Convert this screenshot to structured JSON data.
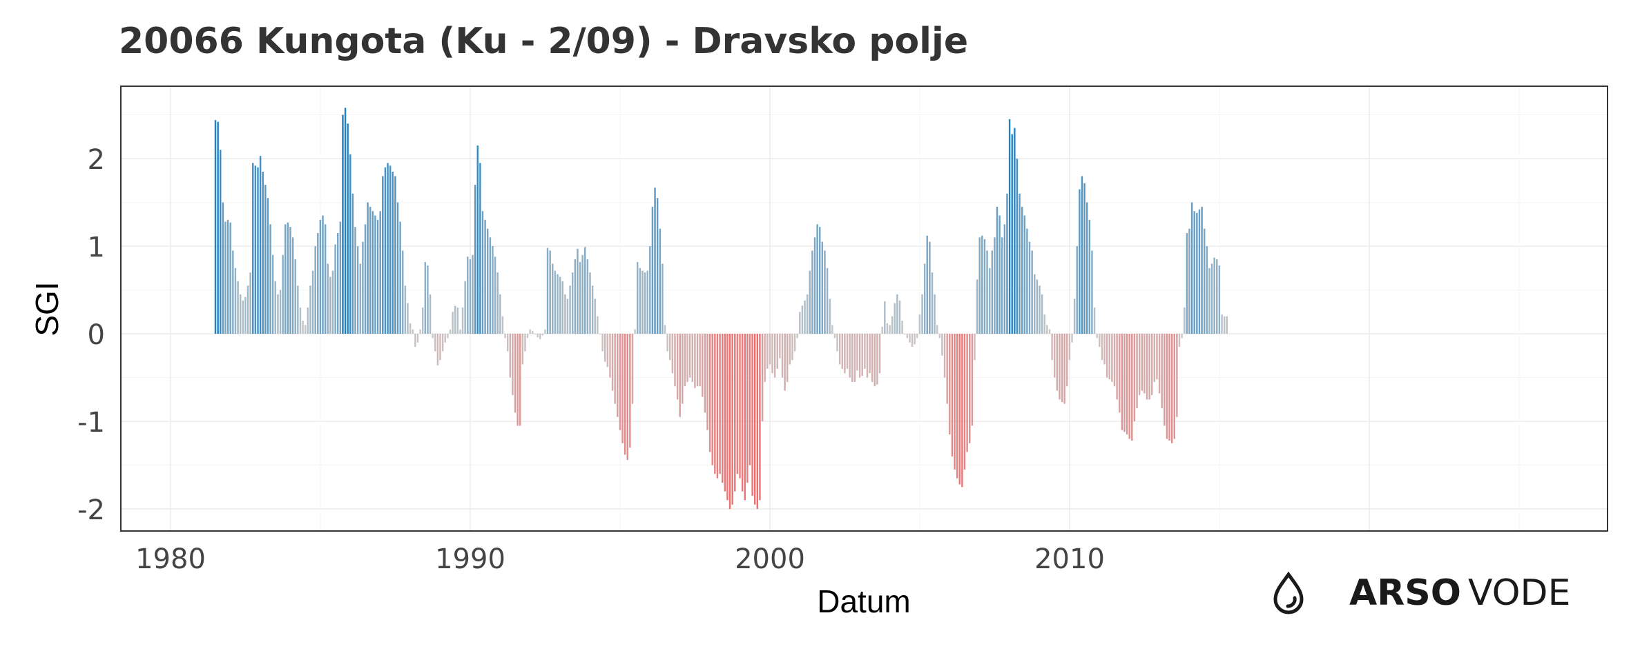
{
  "title": "20066 Kungota (Ku - 2/09) - Dravsko polje",
  "logo": {
    "brand_bold": "ARSO",
    "brand_light": "VODE",
    "icon": "water-drop-icon"
  },
  "colors": {
    "positive": "#1f7fc1",
    "negative": "#ee6f6f",
    "neutral": "#c8c8c8",
    "text": "#333333"
  },
  "chart_data": {
    "type": "bar",
    "title": "20066 Kungota (Ku - 2/09) - Dravsko polje",
    "xlabel": "Datum",
    "ylabel": "SGI",
    "xticks": [
      1980,
      1990,
      2000,
      2010
    ],
    "yticks": [
      2,
      1,
      0,
      -1,
      -2
    ],
    "xlim": [
      1979,
      2028
    ],
    "ylim": [
      -2.2,
      2.8
    ],
    "grid": true,
    "legend": "none",
    "x_unit": "year (monthly bars)",
    "x_start": 1981.5,
    "series": [
      {
        "values": [
          2.44,
          2.42,
          2.1,
          1.5,
          1.28,
          1.3,
          1.27,
          0.95,
          0.75,
          0.6,
          0.45,
          0.38,
          0.42,
          0.55,
          0.7,
          1.95,
          1.92,
          1.9,
          2.03,
          1.85,
          1.7,
          1.55,
          1.25,
          0.9,
          0.6,
          0.45,
          0.5,
          0.9,
          1.25,
          1.27,
          1.22,
          1.1,
          0.85,
          0.55,
          0.3,
          0.15,
          0.1,
          0.3,
          0.55,
          0.72,
          1.0,
          1.15,
          1.3,
          1.35,
          1.25,
          0.8,
          0.65,
          0.72,
          1.02,
          1.15,
          1.28,
          2.5,
          2.58,
          2.4,
          2.05,
          1.6,
          1.22,
          1.0,
          0.8,
          1.05,
          1.25,
          1.5,
          1.45,
          1.4,
          1.35,
          1.3,
          1.4,
          1.8,
          1.9,
          1.95,
          1.92,
          1.85,
          1.8,
          1.5,
          1.28,
          0.95,
          0.55,
          0.35,
          0.12,
          0.05,
          -0.15,
          -0.1,
          0.05,
          0.3,
          0.82,
          0.78,
          0.45,
          -0.05,
          -0.2,
          -0.36,
          -0.3,
          -0.2,
          -0.1,
          -0.05,
          0.05,
          0.25,
          0.32,
          0.3,
          0.05,
          0.3,
          0.6,
          0.88,
          0.85,
          0.9,
          1.7,
          2.15,
          1.95,
          1.4,
          1.3,
          1.2,
          1.1,
          1.0,
          0.88,
          0.7,
          0.45,
          0.2,
          -0.05,
          -0.2,
          -0.5,
          -0.7,
          -0.9,
          -1.05,
          -1.05,
          -0.35,
          -0.2,
          -0.05,
          0.05,
          0.03,
          0.0,
          -0.04,
          -0.06,
          -0.02,
          0.05,
          0.98,
          0.95,
          0.8,
          0.72,
          0.68,
          0.65,
          0.6,
          0.45,
          0.4,
          0.55,
          0.7,
          0.85,
          0.97,
          0.82,
          0.9,
          0.99,
          0.85,
          0.7,
          0.55,
          0.4,
          0.2,
          0.0,
          -0.2,
          -0.32,
          -0.38,
          -0.5,
          -0.65,
          -0.8,
          -0.95,
          -1.1,
          -1.25,
          -1.38,
          -1.44,
          -1.3,
          -0.8,
          0.05,
          0.82,
          0.75,
          0.72,
          0.7,
          0.72,
          1.0,
          1.45,
          1.67,
          1.55,
          1.2,
          0.8,
          0.1,
          -0.2,
          -0.3,
          -0.45,
          -0.6,
          -0.75,
          -0.95,
          -0.8,
          -0.6,
          -0.55,
          -0.5,
          -0.55,
          -0.62,
          -0.6,
          -0.6,
          -0.72,
          -0.9,
          -1.1,
          -1.35,
          -1.5,
          -1.6,
          -1.65,
          -1.6,
          -1.7,
          -1.8,
          -1.9,
          -2.0,
          -1.95,
          -1.8,
          -1.6,
          -1.65,
          -1.8,
          -1.9,
          -1.7,
          -1.5,
          -1.85,
          -1.95,
          -2.0,
          -1.9,
          -1.0,
          -0.55,
          -0.4,
          -0.35,
          -0.45,
          -0.5,
          -0.4,
          -0.28,
          -0.5,
          -0.65,
          -0.55,
          -0.35,
          -0.3,
          -0.2,
          -0.05,
          0.25,
          0.32,
          0.38,
          0.45,
          0.72,
          0.95,
          1.1,
          1.25,
          1.22,
          1.05,
          0.95,
          0.75,
          0.4,
          0.1,
          -0.05,
          -0.2,
          -0.35,
          -0.4,
          -0.45,
          -0.4,
          -0.5,
          -0.55,
          -0.55,
          -0.42,
          -0.5,
          -0.48,
          -0.4,
          -0.5,
          -0.45,
          -0.55,
          -0.6,
          -0.58,
          -0.45,
          0.08,
          0.37,
          0.12,
          0.1,
          0.2,
          0.35,
          0.45,
          0.38,
          0.15,
          0.0,
          -0.05,
          -0.1,
          -0.15,
          -0.12,
          -0.05,
          0.22,
          0.45,
          0.8,
          1.12,
          1.05,
          0.7,
          0.45,
          0.1,
          -0.05,
          -0.25,
          -0.5,
          -0.8,
          -1.15,
          -1.4,
          -1.55,
          -1.65,
          -1.72,
          -1.75,
          -1.55,
          -1.35,
          -1.25,
          -1.05,
          -0.3,
          0.62,
          1.1,
          1.12,
          1.08,
          0.95,
          0.75,
          0.95,
          1.1,
          1.45,
          1.35,
          1.1,
          1.25,
          1.6,
          2.45,
          2.28,
          2.35,
          2.0,
          1.6,
          1.45,
          1.35,
          1.2,
          1.05,
          0.95,
          0.68,
          0.62,
          0.55,
          0.45,
          0.22,
          0.1,
          0.05,
          -0.3,
          -0.5,
          -0.65,
          -0.75,
          -0.78,
          -0.8,
          -0.6,
          -0.3,
          -0.1,
          0.4,
          1.0,
          1.65,
          1.8,
          1.72,
          1.5,
          1.3,
          0.95,
          0.3,
          -0.05,
          -0.15,
          -0.3,
          -0.35,
          -0.5,
          -0.52,
          -0.55,
          -0.6,
          -0.75,
          -0.9,
          -1.1,
          -1.12,
          -1.15,
          -1.2,
          -1.22,
          -1.0,
          -0.85,
          -0.7,
          -0.65,
          -0.68,
          -0.75,
          -0.75,
          -0.7,
          -0.55,
          -0.52,
          -0.68,
          -0.85,
          -1.05,
          -1.2,
          -1.22,
          -1.25,
          -1.2,
          -0.95,
          -0.15,
          -0.05,
          0.3,
          1.15,
          1.2,
          1.5,
          1.4,
          1.38,
          1.42,
          1.45,
          1.2,
          1.0,
          0.75,
          0.8,
          0.87,
          0.85,
          0.78,
          0.22,
          0.2,
          0.2
        ]
      }
    ]
  }
}
